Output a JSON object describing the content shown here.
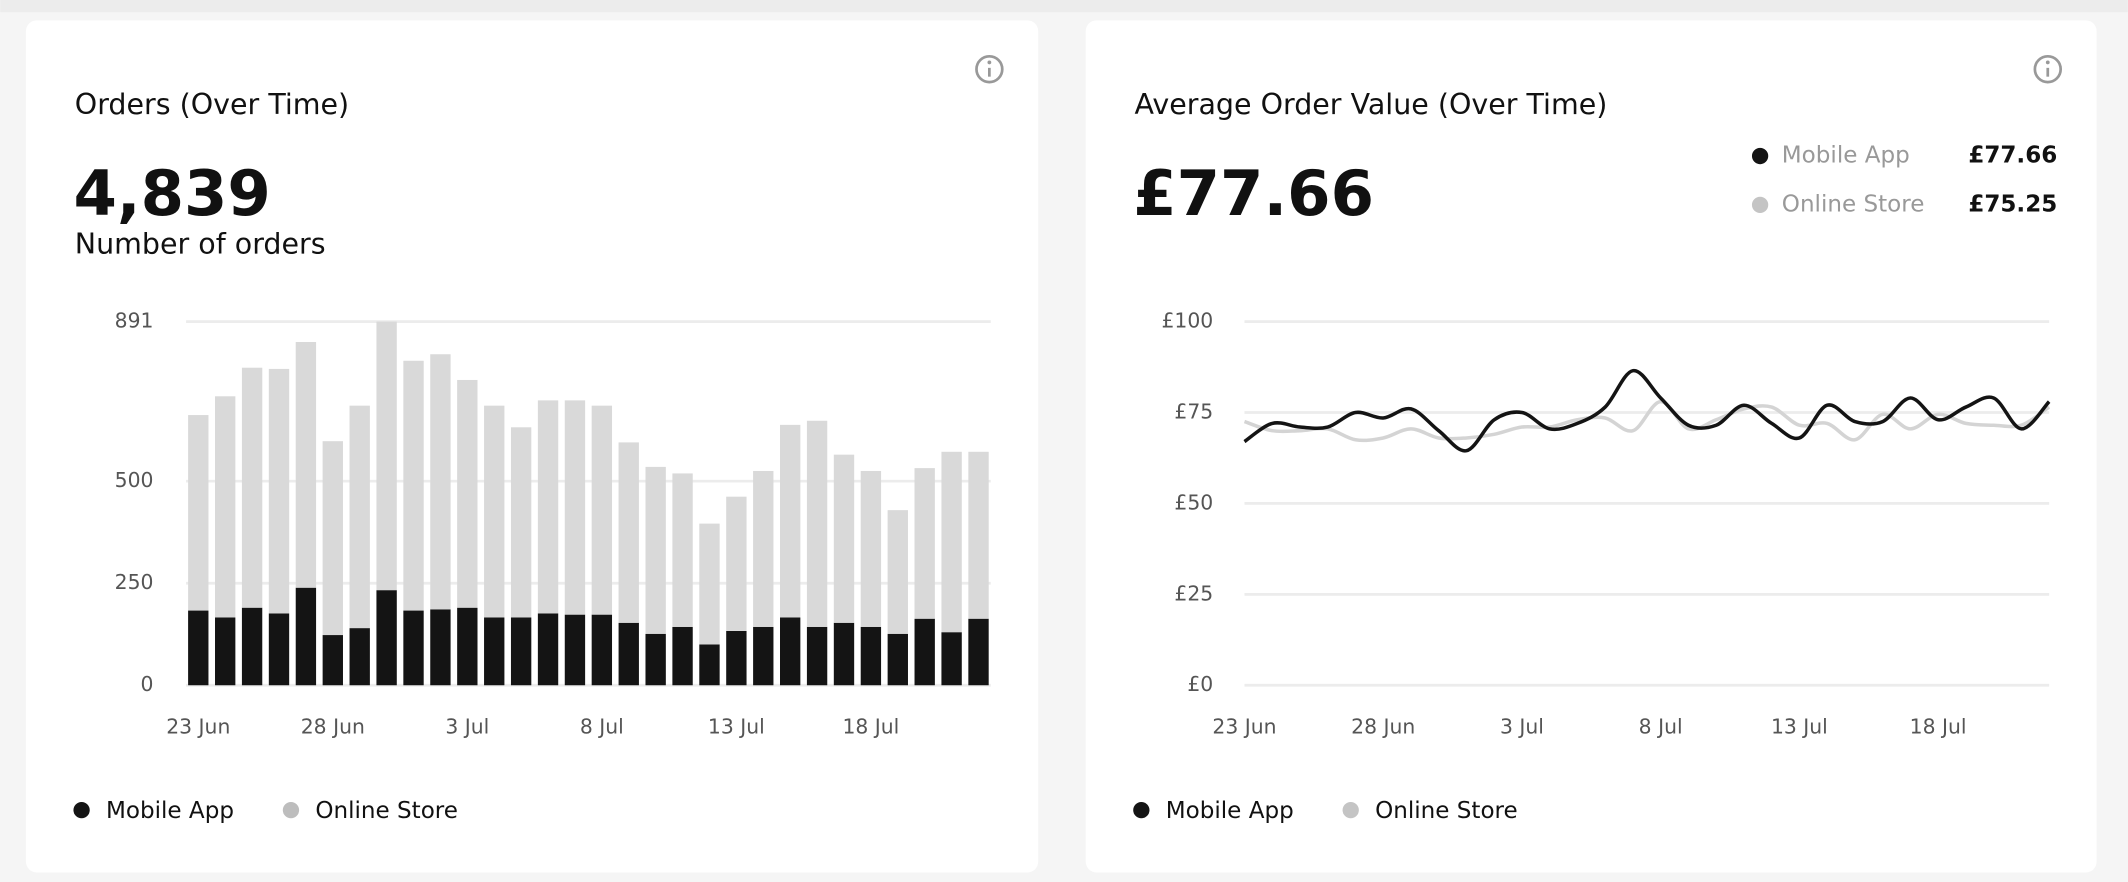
{
  "chart_data": [
    {
      "type": "bar",
      "stacked": true,
      "title": "Orders (Over Time)",
      "kpi": "4,839",
      "kpi_label": "Number of orders",
      "categories": [
        "23 Jun",
        null,
        null,
        null,
        null,
        "28 Jun",
        null,
        null,
        null,
        null,
        "3 Jul",
        null,
        null,
        null,
        null,
        "8 Jul",
        null,
        null,
        null,
        null,
        "13 Jul",
        null,
        null,
        null,
        null,
        "18 Jul",
        null,
        null,
        null,
        null
      ],
      "series": [
        {
          "name": "Mobile App",
          "color": "#141414",
          "legend_color": "#141414",
          "values": [
            183,
            166,
            190,
            176,
            239,
            123,
            140,
            233,
            183,
            186,
            190,
            166,
            166,
            176,
            173,
            173,
            153,
            126,
            143,
            100,
            133,
            143,
            166,
            143,
            153,
            143,
            126,
            163,
            130,
            163
          ]
        },
        {
          "name": "Online Store",
          "color": "#d9d9d9",
          "legend_color": "#bdbdbd",
          "values": [
            479,
            542,
            588,
            599,
            602,
            475,
            545,
            658,
            612,
            625,
            558,
            519,
            466,
            522,
            525,
            512,
            442,
            409,
            376,
            296,
            329,
            382,
            472,
            505,
            412,
            382,
            303,
            369,
            442,
            409
          ]
        }
      ],
      "ylim": [
        0,
        891
      ],
      "yticks": [
        0,
        250,
        500,
        891
      ],
      "grid": true
    },
    {
      "type": "line",
      "title": "Average Order Value (Over Time)",
      "kpi": "£77.66",
      "categories": [
        "23 Jun",
        null,
        null,
        null,
        null,
        "28 Jun",
        null,
        null,
        null,
        null,
        "3 Jul",
        null,
        null,
        null,
        null,
        "8 Jul",
        null,
        null,
        null,
        null,
        "13 Jul",
        null,
        null,
        null,
        null,
        "18 Jul",
        null,
        null,
        null,
        null
      ],
      "series": [
        {
          "name": "Mobile App",
          "color": "#141414",
          "legend_color": "#141414",
          "total": "£77.66",
          "values": [
            67,
            72,
            71,
            71,
            75,
            73.5,
            76,
            70,
            64.5,
            73,
            75,
            70.5,
            72,
            76.5,
            86.5,
            79,
            71.5,
            71.5,
            77,
            72,
            68,
            77,
            72.5,
            72.5,
            79,
            73,
            76.5,
            79,
            70.5,
            78
          ]
        },
        {
          "name": "Online Store",
          "color": "#d4d4d4",
          "legend_color": "#c4c4c4",
          "total": "£75.25",
          "values": [
            72.5,
            70,
            70,
            70.5,
            67.5,
            68,
            70.5,
            68,
            68,
            69,
            71,
            71,
            73,
            73.5,
            70,
            78,
            70.5,
            73,
            76,
            76.5,
            71.5,
            72,
            67.5,
            74.5,
            70.5,
            74.5,
            72,
            71.5,
            71.5,
            76.5
          ]
        }
      ],
      "ylim": [
        0,
        100
      ],
      "yticks": [
        {
          "value": 0,
          "label": "£0"
        },
        {
          "value": 25,
          "label": "£25"
        },
        {
          "value": 50,
          "label": "£50"
        },
        {
          "value": 75,
          "label": "£75"
        },
        {
          "value": 100,
          "label": "£100"
        }
      ],
      "grid": true
    }
  ]
}
